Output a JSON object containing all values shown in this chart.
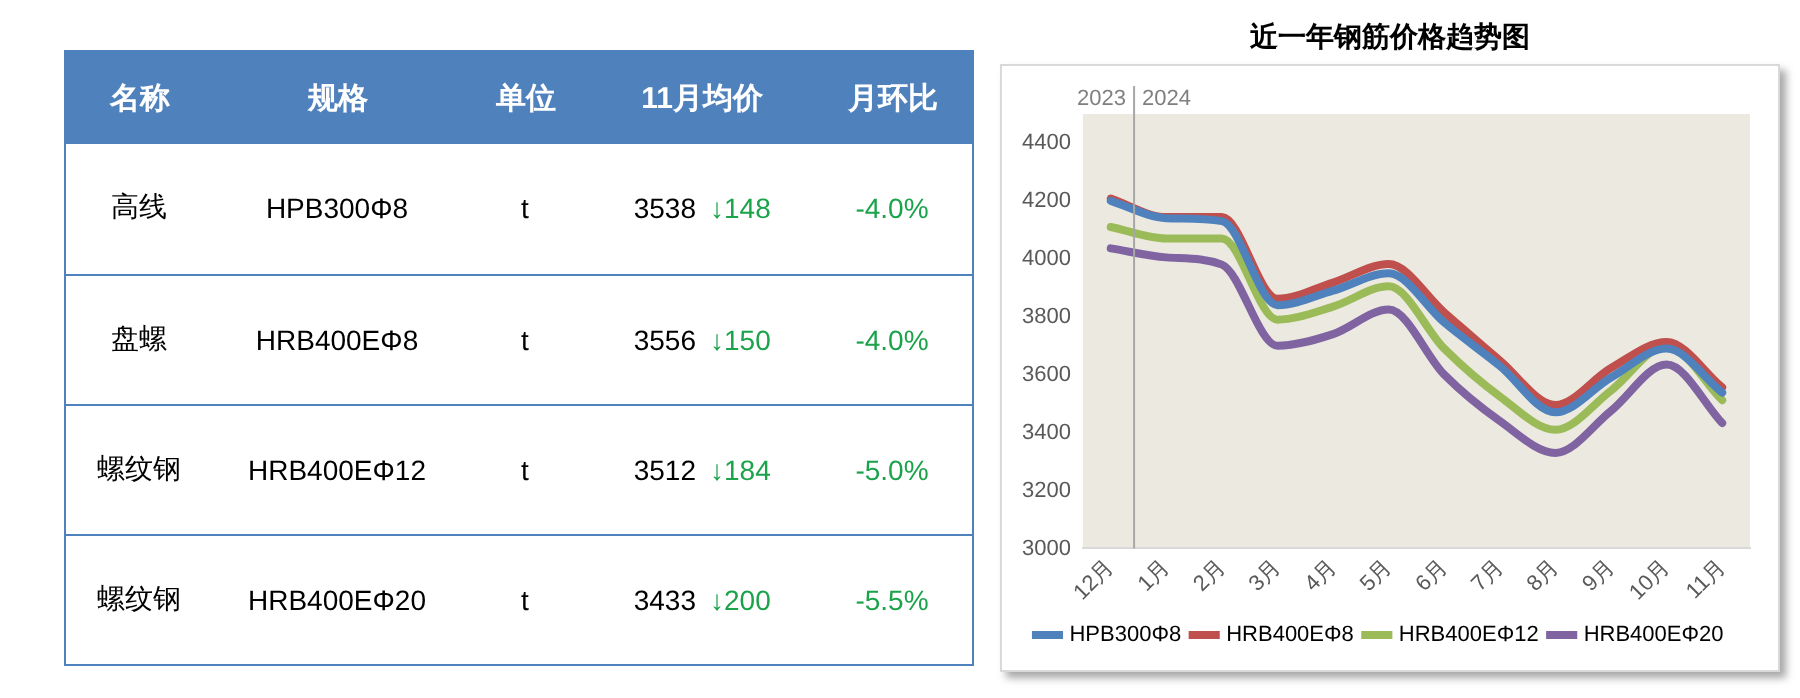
{
  "chart_data": [
    {
      "type": "other",
      "categories": [
        "名称",
        "规格",
        "单位",
        "11月均价",
        "月环比"
      ],
      "annotations": [
        "高线",
        "HPB300Φ8",
        "t",
        "3538",
        "↓148",
        "-4.0%",
        "盘螺",
        "HRB400EΦ8",
        "t",
        "3556",
        "↓150",
        "-4.0%",
        "螺纹钢",
        "HRB400EΦ12",
        "t",
        "3512",
        "↓184",
        "-5.0%",
        "螺纹钢",
        "HRB400EΦ20",
        "t",
        "3433",
        "↓200",
        "-5.5%"
      ]
    },
    {
      "type": "line",
      "title": "近一年钢筋价格趋势图",
      "categories": [
        "12月",
        "1月",
        "2月",
        "3月",
        "4月",
        "5月",
        "6月",
        "7月",
        "8月",
        "9月",
        "10月",
        "11月"
      ],
      "series": [
        {
          "name": "HPB300Φ8",
          "color": "#4f81bd",
          "values": [
            4200,
            4140,
            4130,
            3840,
            3890,
            3950,
            3780,
            3630,
            3470,
            3590,
            3690,
            3538
          ]
        },
        {
          "name": "HRB400EΦ8",
          "color": "#c0504d",
          "values": [
            4208,
            4144,
            4144,
            3862,
            3918,
            3982,
            3815,
            3649,
            3495,
            3623,
            3713,
            3556
          ]
        },
        {
          "name": "HRB400EΦ12",
          "color": "#9bbb59",
          "values": [
            4110,
            4070,
            4070,
            3790,
            3835,
            3905,
            3690,
            3525,
            3410,
            3545,
            3700,
            3512
          ]
        },
        {
          "name": "HRB400EΦ20",
          "color": "#8064a2",
          "values": [
            4036,
            4005,
            3980,
            3700,
            3740,
            3825,
            3600,
            3440,
            3330,
            3475,
            3635,
            3433
          ]
        }
      ],
      "ylim": [
        3000,
        4500
      ],
      "yticks": [
        3000,
        3200,
        3400,
        3600,
        3800,
        4000,
        4200,
        4400
      ],
      "ref_lines": [
        {
          "axis": "x",
          "value": "1月",
          "label": "2024",
          "color": "#a6a6a6"
        }
      ],
      "annotations": [
        "2023"
      ],
      "grid": false,
      "legend": "bottom",
      "marker": "none",
      "line_style": "solid"
    }
  ]
}
